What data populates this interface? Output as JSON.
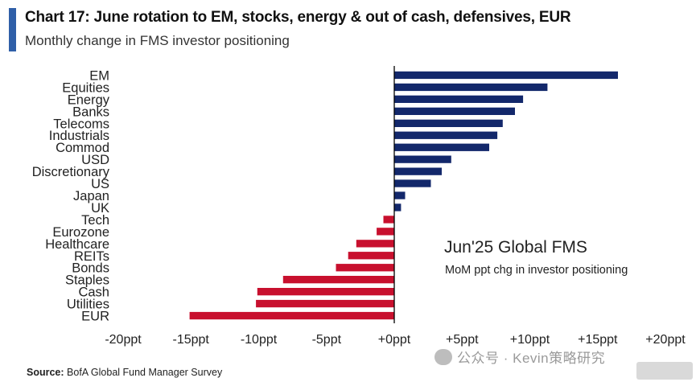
{
  "header": {
    "title": "Chart 17: June rotation to EM, stocks, energy & out of cash, defensives, EUR",
    "subtitle": "Monthly change in FMS investor positioning"
  },
  "annotation": {
    "line1": "Jun'25 Global FMS",
    "line2": "MoM ppt chg in investor positioning"
  },
  "source": {
    "label": "Source:",
    "text": "BofA Global Fund Manager Survey"
  },
  "watermark": {
    "text": "公众号 · Kevin策略研究"
  },
  "colors": {
    "positive": "#13286b",
    "negative": "#c8102e",
    "accent": "#2f5fa8"
  },
  "chart_data": {
    "type": "bar",
    "orientation": "horizontal",
    "title": "Chart 17: June rotation to EM, stocks, energy & out of cash, defensives, EUR",
    "subtitle": "Monthly change in FMS investor positioning",
    "xlabel": "",
    "ylabel": "",
    "xlim": [
      -20,
      20
    ],
    "categories": [
      "EM",
      "Equities",
      "Energy",
      "Banks",
      "Telecoms",
      "Industrials",
      "Commod",
      "USD",
      "Discretionary",
      "US",
      "Japan",
      "UK",
      "Tech",
      "Eurozone",
      "Healthcare",
      "REITs",
      "Bonds",
      "Staples",
      "Cash",
      "Utilities",
      "EUR"
    ],
    "values": [
      16.5,
      11.3,
      9.5,
      8.9,
      8.0,
      7.6,
      7.0,
      4.2,
      3.5,
      2.7,
      0.8,
      0.5,
      -0.8,
      -1.3,
      -2.8,
      -3.4,
      -4.3,
      -8.2,
      -10.1,
      -10.2,
      -15.1
    ],
    "xticks": [
      "-20ppt",
      "-15ppt",
      "-10ppt",
      "-5ppt",
      "+0ppt",
      "+5ppt",
      "+10ppt",
      "+15ppt",
      "+20ppt"
    ],
    "xtick_values": [
      -20,
      -15,
      -10,
      -5,
      0,
      5,
      10,
      15,
      20
    ],
    "grid": false
  }
}
